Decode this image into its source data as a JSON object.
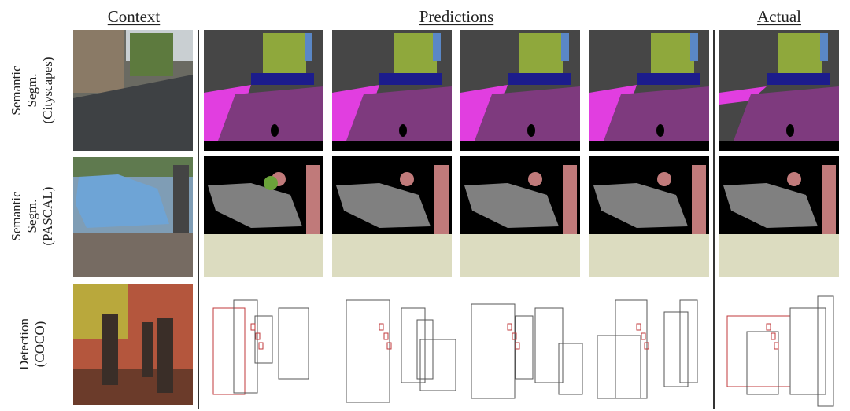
{
  "headers": {
    "context": "Context",
    "predictions": "Predictions",
    "actual": "Actual"
  },
  "rows": [
    {
      "label_lines": [
        "Semantic",
        "Segm.",
        "(Cityscapes)"
      ]
    },
    {
      "label_lines": [
        "Semantic",
        "Segm.",
        "(PASCAL)"
      ]
    },
    {
      "label_lines": [
        "Detection",
        "(COCO)"
      ]
    }
  ]
}
